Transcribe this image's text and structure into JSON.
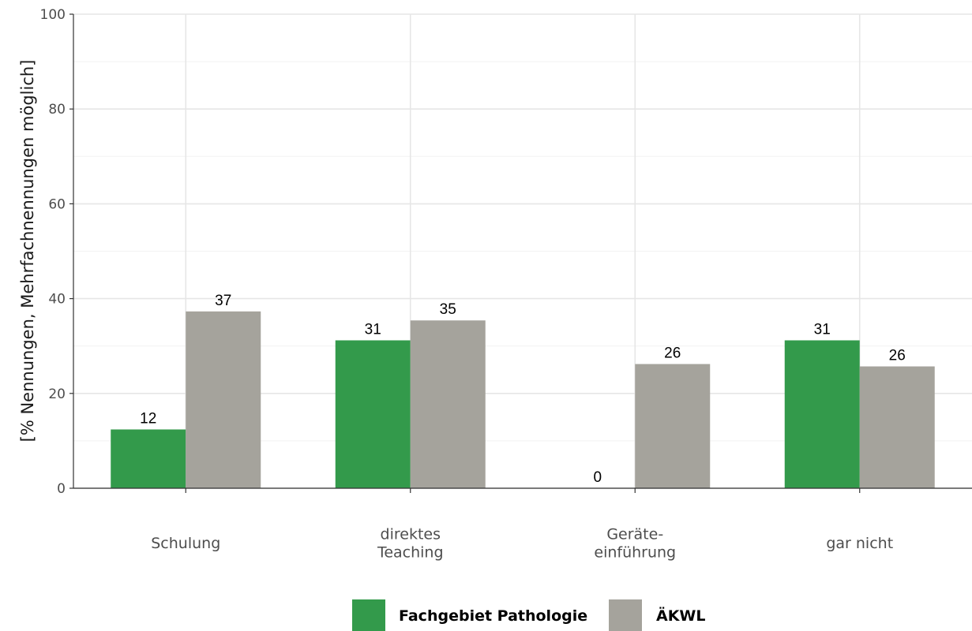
{
  "chart_data": {
    "type": "bar",
    "title": "",
    "xlabel": "",
    "ylabel": "[% Nennungen, Mehrfachnennungen möglich]",
    "ylim": [
      0,
      100
    ],
    "yticks": [
      "0",
      "20",
      "40",
      "60",
      "80",
      "100"
    ],
    "categories": [
      [
        "Schulung"
      ],
      [
        "direktes",
        "Teaching"
      ],
      [
        "Geräte-",
        "einführung"
      ],
      [
        "gar nicht"
      ]
    ],
    "series": [
      {
        "name": "Fachgebiet Pathologie",
        "color": "#339a4b",
        "values": [
          12.4,
          31.2,
          0,
          31.2
        ],
        "labels": [
          "12",
          "31",
          "0",
          "31"
        ]
      },
      {
        "name": "ÄKWL",
        "color": "#a5a39c",
        "values": [
          37.3,
          35.4,
          26.2,
          25.7
        ],
        "labels": [
          "37",
          "35",
          "26",
          "26"
        ]
      }
    ],
    "grid": true,
    "legend_position": "bottom"
  }
}
